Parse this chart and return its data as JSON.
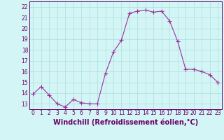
{
  "x": [
    0,
    1,
    2,
    3,
    4,
    5,
    6,
    7,
    8,
    9,
    10,
    11,
    12,
    13,
    14,
    15,
    16,
    17,
    18,
    19,
    20,
    21,
    22,
    23
  ],
  "y": [
    13.9,
    14.6,
    13.8,
    13.0,
    12.7,
    13.4,
    13.1,
    13.0,
    13.0,
    15.8,
    17.8,
    18.9,
    21.4,
    21.6,
    21.7,
    21.5,
    21.6,
    20.7,
    18.8,
    16.2,
    16.2,
    16.0,
    15.7,
    15.0
  ],
  "line_color": "#993399",
  "marker": "+",
  "marker_size": 4,
  "bg_color": "#d4f5f5",
  "grid_color": "#aadddd",
  "xlabel": "Windchill (Refroidissement éolien,°C)",
  "ylim": [
    12.5,
    22.5
  ],
  "xlim": [
    -0.5,
    23.5
  ],
  "yticks": [
    13,
    14,
    15,
    16,
    17,
    18,
    19,
    20,
    21,
    22
  ],
  "xticks": [
    0,
    1,
    2,
    3,
    4,
    5,
    6,
    7,
    8,
    9,
    10,
    11,
    12,
    13,
    14,
    15,
    16,
    17,
    18,
    19,
    20,
    21,
    22,
    23
  ],
  "tick_label_fontsize": 5.5,
  "xlabel_fontsize": 7.0,
  "axis_color": "#660066",
  "spine_color": "#660066",
  "linewidth": 0.8,
  "markeredgewidth": 0.8
}
